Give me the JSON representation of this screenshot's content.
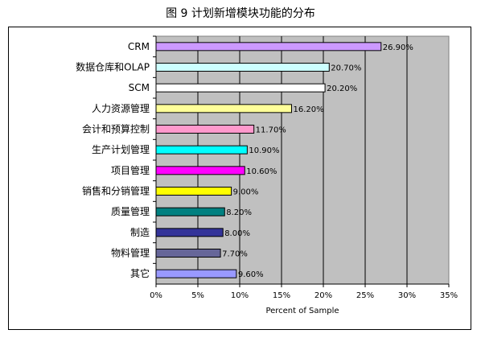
{
  "page": {
    "title": "图 9  计划新增模块功能的分布"
  },
  "chart_data": {
    "type": "bar",
    "orientation": "horizontal",
    "categories": [
      "CRM",
      "数据仓库和OLAP",
      "SCM",
      "人力资源管理",
      "会计和预算控制",
      "生产计划管理",
      "项目管理",
      "销售和分销管理",
      "质量管理",
      "制造",
      "物料管理",
      "其它"
    ],
    "values": [
      26.9,
      20.7,
      20.2,
      16.2,
      11.7,
      10.9,
      10.6,
      9.0,
      8.2,
      8.0,
      7.7,
      9.6
    ],
    "value_labels": [
      "26.90%",
      "20.70%",
      "20.20%",
      "16.20%",
      "11.70%",
      "10.90%",
      "10.60%",
      "9.00%",
      "8.20%",
      "8.00%",
      "7.70%",
      "9.60%"
    ],
    "colors": [
      "#cc99ff",
      "#ccffff",
      "#ffffff",
      "#ffff99",
      "#ff99cc",
      "#00ffff",
      "#ff00ff",
      "#ffff00",
      "#008080",
      "#333399",
      "#666699",
      "#9999ff"
    ],
    "xlabel": "Percent of Sample",
    "xlim": [
      0,
      35
    ],
    "xticks": [
      0,
      5,
      10,
      15,
      20,
      25,
      30,
      35
    ],
    "xtick_labels": [
      "0%",
      "5%",
      "10%",
      "15%",
      "20%",
      "25%",
      "30%",
      "35%"
    ],
    "plot_background": "#c0c0c0",
    "grid": true
  }
}
